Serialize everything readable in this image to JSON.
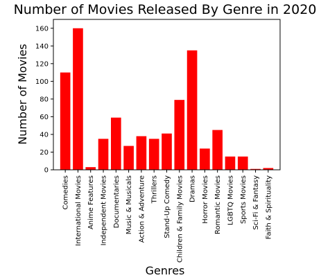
{
  "chart_data": {
    "type": "bar",
    "title": "Number of Movies Released By Genre in 2020",
    "xlabel": "Genres",
    "ylabel": "Number of Movies",
    "categories": [
      "Comedies",
      "International Movies",
      "Anime Features",
      "Independent Movies",
      "Documentaries",
      "Music & Musicals",
      "Action & Adventure",
      "Thrillers",
      "Stand-Up Comedy",
      "Children & Family Movies",
      "Dramas",
      "Horror Movies",
      "Romantic Movies",
      "LGBTQ Movies",
      "Sports Movies",
      "Sci-Fi & Fantasy",
      "Faith & Spirituality"
    ],
    "values": [
      110,
      160,
      3,
      35,
      59,
      27,
      38,
      35,
      41,
      79,
      135,
      24,
      45,
      15,
      15,
      1,
      2
    ],
    "ylim": [
      0,
      170
    ],
    "yticks": [
      0,
      20,
      40,
      60,
      80,
      100,
      120,
      140,
      160
    ],
    "bar_color": "#ff0000",
    "grid": false,
    "legend": "none"
  }
}
